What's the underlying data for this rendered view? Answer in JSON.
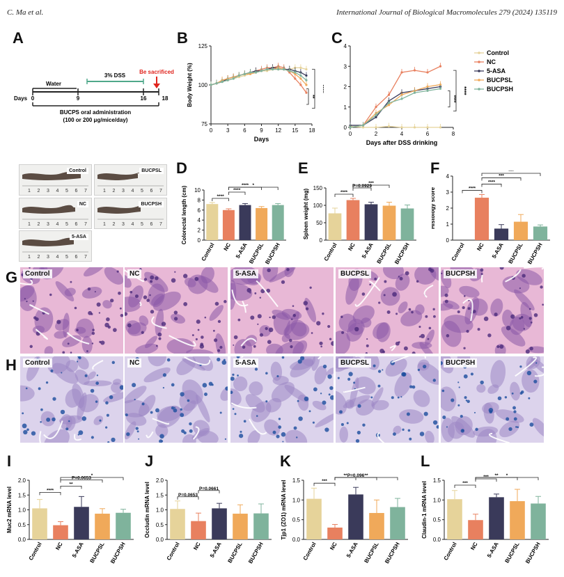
{
  "header": {
    "authors": "C. Ma et al.",
    "journal": "International Journal of Biological Macromolecules 279 (2024) 135119"
  },
  "panel_labels": [
    "A",
    "B",
    "C",
    "D",
    "E",
    "F",
    "G",
    "H",
    "I",
    "J",
    "K",
    "L"
  ],
  "groups": [
    "Control",
    "NC",
    "5-ASA",
    "BUCPSL",
    "BUCPSH"
  ],
  "colors": {
    "Control": "#e6d39a",
    "NC": "#e8805f",
    "5-ASA": "#3a3a5a",
    "BUCPSL": "#f0a95a",
    "BUCPSH": "#7fb39c",
    "timeline": "#222222",
    "dss": "#4fa88a",
    "sacrifice": "#e0251e"
  },
  "timeline": {
    "days_label": "Days",
    "water": "Water",
    "dss": "3% DSS",
    "sacrifice": "Be sacrificed",
    "ticks": [
      "0",
      "9",
      "16",
      "18"
    ],
    "admin_line1": "BUCPS oral administration",
    "admin_line2": "(100 or 200 μg/mice/day)"
  },
  "colon_photos": [
    {
      "label": "Control"
    },
    {
      "label": "BUCPSL"
    },
    {
      "label": "NC"
    },
    {
      "label": "BUCPSH"
    },
    {
      "label": "5-ASA"
    }
  ],
  "ruler_numbers": [
    "1",
    "2",
    "3",
    "4",
    "5",
    "6",
    "7"
  ],
  "histology": {
    "he_labels": [
      "Control",
      "NC",
      "5-ASA",
      "BUCPSL",
      "BUCPSH"
    ],
    "ab_labels": [
      "Control",
      "NC",
      "5-ASA",
      "BUCPSL",
      "BUCPSH"
    ]
  },
  "chart_data": [
    {
      "id": "B",
      "type": "line",
      "xlabel": "Days",
      "ylabel": "Body Weight (%)",
      "xlim": [
        0,
        18
      ],
      "ylim": [
        75,
        125
      ],
      "xticks": [
        0,
        3,
        6,
        9,
        12,
        15,
        18
      ],
      "yticks": [
        75,
        100,
        125
      ],
      "annotations": [
        "****",
        "**"
      ],
      "series": [
        {
          "name": "Control",
          "x": [
            0,
            1,
            2,
            3,
            4,
            5,
            6,
            7,
            8,
            9,
            10,
            11,
            12,
            13,
            14,
            15,
            16,
            17
          ],
          "y": [
            100,
            101,
            102,
            103,
            104,
            105,
            106,
            107,
            108,
            109,
            109,
            110,
            110,
            110,
            110,
            111,
            111,
            110
          ]
        },
        {
          "name": "NC",
          "x": [
            0,
            1,
            2,
            3,
            4,
            5,
            6,
            7,
            8,
            9,
            10,
            11,
            12,
            13,
            14,
            15,
            16,
            17
          ],
          "y": [
            100,
            101,
            103,
            104,
            105,
            106,
            107,
            108,
            109,
            110,
            111,
            111,
            112,
            111,
            108,
            104,
            100,
            95
          ]
        },
        {
          "name": "5-ASA",
          "x": [
            0,
            1,
            2,
            3,
            4,
            5,
            6,
            7,
            8,
            9,
            10,
            11,
            12,
            13,
            14,
            15,
            16,
            17
          ],
          "y": [
            100,
            101,
            102,
            104,
            105,
            106,
            107,
            108,
            109,
            109,
            110,
            111,
            111,
            110,
            110,
            109,
            108,
            106
          ]
        },
        {
          "name": "BUCPSL",
          "x": [
            0,
            1,
            2,
            3,
            4,
            5,
            6,
            7,
            8,
            9,
            10,
            11,
            12,
            13,
            14,
            15,
            16,
            17
          ],
          "y": [
            100,
            101,
            103,
            104,
            105,
            106,
            107,
            107,
            108,
            109,
            110,
            110,
            111,
            110,
            109,
            107,
            104,
            100
          ]
        },
        {
          "name": "BUCPSH",
          "x": [
            0,
            1,
            2,
            3,
            4,
            5,
            6,
            7,
            8,
            9,
            10,
            11,
            12,
            13,
            14,
            15,
            16,
            17
          ],
          "y": [
            100,
            101,
            102,
            103,
            104,
            106,
            107,
            108,
            108,
            109,
            110,
            110,
            110,
            110,
            109,
            108,
            106,
            103
          ]
        }
      ]
    },
    {
      "id": "C",
      "type": "line",
      "xlabel": "Days after DSS drinking",
      "ylabel": "DAI Scores",
      "xlim": [
        0,
        8
      ],
      "ylim": [
        0,
        4
      ],
      "xticks": [
        0,
        2,
        4,
        6,
        8
      ],
      "yticks": [
        0,
        1,
        2,
        3,
        4
      ],
      "annotations": [
        "****",
        "****"
      ],
      "legend": [
        "Control",
        "NC",
        "5-ASA",
        "BUCPSL",
        "BUCPSH"
      ],
      "series": [
        {
          "name": "Control",
          "x": [
            0,
            1,
            2,
            3,
            4,
            5,
            6,
            7
          ],
          "y": [
            0.05,
            0,
            0,
            0.05,
            0,
            0,
            0,
            0
          ]
        },
        {
          "name": "NC",
          "x": [
            0,
            1,
            2,
            3,
            4,
            5,
            6,
            7
          ],
          "y": [
            0,
            0.1,
            1,
            1.6,
            2.7,
            2.8,
            2.7,
            3.0
          ]
        },
        {
          "name": "5-ASA",
          "x": [
            0,
            1,
            2,
            3,
            4,
            5,
            6,
            7
          ],
          "y": [
            0.1,
            0.1,
            0.5,
            1.3,
            1.7,
            1.8,
            1.9,
            2.0
          ]
        },
        {
          "name": "BUCPSL",
          "x": [
            0,
            1,
            2,
            3,
            4,
            5,
            6,
            7
          ],
          "y": [
            0,
            0.1,
            0.7,
            1.1,
            1.6,
            1.8,
            2.0,
            2.1
          ]
        },
        {
          "name": "BUCPSH",
          "x": [
            0,
            1,
            2,
            3,
            4,
            5,
            6,
            7
          ],
          "y": [
            0,
            0.1,
            0.6,
            1.2,
            1.4,
            1.7,
            1.8,
            1.9
          ]
        }
      ]
    },
    {
      "id": "D",
      "type": "bar",
      "ylabel": "Colorectal length (cm)",
      "ylim": [
        0,
        10
      ],
      "yticks": [
        0,
        2,
        4,
        6,
        8,
        10
      ],
      "categories": [
        "Control",
        "NC",
        "5-ASA",
        "BUCPSL",
        "BUCPSH"
      ],
      "values": [
        7.2,
        6.0,
        7.0,
        6.4,
        7.0
      ],
      "errors": [
        0.3,
        0.25,
        0.3,
        0.3,
        0.3
      ],
      "sig": [
        "****",
        "****",
        "****",
        "*"
      ]
    },
    {
      "id": "E",
      "type": "bar",
      "ylabel": "Spleen weight (mg)",
      "ylim": [
        0,
        150
      ],
      "yticks": [
        0,
        50,
        100,
        150
      ],
      "categories": [
        "Control",
        "NC",
        "5-ASA",
        "BUCPSL",
        "BUCPSH"
      ],
      "values": [
        77,
        115,
        103,
        99,
        91
      ],
      "errors": [
        15,
        5,
        6,
        10,
        10
      ],
      "sig": [
        "****",
        "P=0.0929",
        "***"
      ]
    },
    {
      "id": "F",
      "type": "bar",
      "ylabel": "Histology score",
      "ylim": [
        0,
        4
      ],
      "yticks": [
        0,
        1,
        2,
        3,
        4
      ],
      "categories": [
        "Control",
        "NC",
        "5-ASA",
        "BUCPSL",
        "BUCPSH"
      ],
      "values": [
        0,
        2.65,
        0.72,
        1.15,
        0.85
      ],
      "errors": [
        0,
        0.2,
        0.25,
        0.45,
        0.1
      ],
      "sig": [
        "****",
        "****",
        "***",
        "***"
      ]
    },
    {
      "id": "I",
      "type": "bar",
      "ylabel": "Muc2 mRNA level",
      "ylim": [
        0,
        2.0
      ],
      "yticks": [
        0.0,
        0.5,
        1.0,
        1.5,
        2.0
      ],
      "categories": [
        "Control",
        "NC",
        "5-ASA",
        "BUCPSL",
        "BUCPSH"
      ],
      "values": [
        1.05,
        0.48,
        1.1,
        0.87,
        0.9
      ],
      "errors": [
        0.3,
        0.12,
        0.35,
        0.17,
        0.12
      ],
      "sig": [
        "****",
        "**",
        "P=0.0653",
        "*"
      ]
    },
    {
      "id": "J",
      "type": "bar",
      "ylabel": "Occludin mRNA level",
      "ylim": [
        0,
        2.0
      ],
      "yticks": [
        0.0,
        0.5,
        1.0,
        1.5,
        2.0
      ],
      "categories": [
        "Control",
        "NC",
        "5-ASA",
        "BUCPSL",
        "BUCPSH"
      ],
      "values": [
        1.03,
        0.62,
        1.05,
        0.87,
        0.88
      ],
      "errors": [
        0.27,
        0.27,
        0.17,
        0.3,
        0.32
      ],
      "sig": [
        "P=0.0653",
        "P=0.0661"
      ]
    },
    {
      "id": "K",
      "type": "bar",
      "ylabel": "Tjp1 (ZO1) mRNA level",
      "ylim": [
        0,
        1.5
      ],
      "yticks": [
        0.0,
        0.5,
        1.0,
        1.5
      ],
      "categories": [
        "Control",
        "NC",
        "5-ASA",
        "BUCPSL",
        "BUCPSH"
      ],
      "values": [
        1.03,
        0.3,
        1.14,
        0.67,
        0.82
      ],
      "errors": [
        0.27,
        0.08,
        0.18,
        0.33,
        0.22
      ],
      "sig": [
        "***",
        "**",
        "P=0.096",
        "**"
      ]
    },
    {
      "id": "L",
      "type": "bar",
      "ylabel": "Claudin-1 mRNA level",
      "ylim": [
        0,
        1.5
      ],
      "yticks": [
        0.0,
        0.5,
        1.0,
        1.5
      ],
      "categories": [
        "Control",
        "NC",
        "5-ASA",
        "BUCPSL",
        "BUCPSH"
      ],
      "values": [
        1.02,
        0.49,
        1.07,
        0.97,
        0.91
      ],
      "errors": [
        0.22,
        0.15,
        0.08,
        0.3,
        0.18
      ],
      "sig": [
        "***",
        "***",
        "**",
        "*"
      ]
    }
  ]
}
